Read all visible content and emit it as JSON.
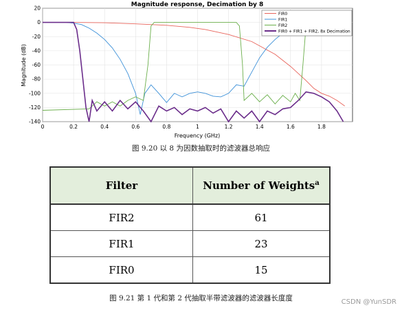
{
  "chart_data": {
    "type": "line",
    "title": "Magnitude response, Decimation by 8",
    "xlabel": "Frequency (GHz)",
    "ylabel": "Magnitude (dB)",
    "xlim": [
      0,
      2
    ],
    "ylim": [
      -140,
      20
    ],
    "xticks": [
      "0",
      "0.2",
      "0.4",
      "0.6",
      "0.8",
      "1",
      "1.2",
      "1.4",
      "1.6",
      "1.8"
    ],
    "yticks": [
      "20",
      "0",
      "-20",
      "-40",
      "-60",
      "-80",
      "-100",
      "-120",
      "-140"
    ],
    "grid": true,
    "legend_position": "top-right",
    "series": [
      {
        "name": "FIR0",
        "color": "#e8635a",
        "x": [
          0,
          0.2,
          0.4,
          0.6,
          0.8,
          0.95,
          1.05,
          1.2,
          1.35,
          1.5,
          1.6,
          1.7,
          1.75,
          1.8,
          1.85,
          1.9,
          1.95
        ],
        "y": [
          0,
          0,
          -0.5,
          -2,
          -4,
          -7,
          -10,
          -17,
          -27,
          -45,
          -62,
          -82,
          -93,
          -100,
          -104,
          -110,
          -118
        ]
      },
      {
        "name": "FIR1",
        "color": "#3c90d8",
        "x": [
          0,
          0.15,
          0.2,
          0.25,
          0.3,
          0.35,
          0.4,
          0.45,
          0.5,
          0.55,
          0.6,
          0.63,
          0.66,
          0.7,
          0.75,
          0.8,
          0.85,
          0.9,
          0.95,
          1.0,
          1.05,
          1.1,
          1.15,
          1.2,
          1.25,
          1.3,
          1.35,
          1.4,
          1.45,
          1.5,
          1.55,
          1.6,
          1.7,
          1.8,
          1.9,
          1.95
        ],
        "y": [
          0,
          0,
          -1,
          -3,
          -8,
          -15,
          -24,
          -36,
          -52,
          -72,
          -100,
          -130,
          -100,
          -88,
          -100,
          -113,
          -100,
          -105,
          -100,
          -98,
          -100,
          -104,
          -105,
          -100,
          -88,
          -90,
          -70,
          -50,
          -35,
          -24,
          -15,
          -8,
          -2,
          0,
          0,
          0
        ]
      },
      {
        "name": "FIR2",
        "color": "#6aae4a",
        "x": [
          0,
          0.3,
          0.35,
          0.4,
          0.45,
          0.5,
          0.55,
          0.6,
          0.65,
          0.68,
          0.7,
          0.72,
          0.75,
          0.8,
          0.9,
          1.0,
          1.1,
          1.2,
          1.25,
          1.27,
          1.29,
          1.3,
          1.35,
          1.4,
          1.45,
          1.5,
          1.55,
          1.6,
          1.63,
          1.66,
          1.68,
          1.7,
          1.75,
          1.8,
          1.95
        ],
        "y": [
          -124,
          -122,
          -112,
          -118,
          -112,
          -118,
          -110,
          -105,
          -110,
          -60,
          -5,
          0,
          0,
          0,
          0,
          0,
          0,
          0,
          0,
          -5,
          -60,
          -110,
          -100,
          -112,
          -102,
          -115,
          -103,
          -112,
          -100,
          -110,
          -60,
          -5,
          0,
          0,
          0
        ]
      },
      {
        "name": "FIR0 + FIR1 + FIR2, 8x Decimation",
        "color": "#6a2c8a",
        "x": [
          0,
          0.2,
          0.22,
          0.24,
          0.26,
          0.28,
          0.3,
          0.32,
          0.35,
          0.4,
          0.45,
          0.5,
          0.55,
          0.6,
          0.65,
          0.7,
          0.75,
          0.8,
          0.85,
          0.9,
          0.95,
          1.0,
          1.05,
          1.1,
          1.15,
          1.2,
          1.25,
          1.3,
          1.35,
          1.4,
          1.45,
          1.5,
          1.55,
          1.6,
          1.65,
          1.7,
          1.75,
          1.8,
          1.85,
          1.9,
          1.94
        ],
        "y": [
          0,
          0,
          -10,
          -40,
          -80,
          -120,
          -140,
          -110,
          -125,
          -112,
          -125,
          -110,
          -122,
          -112,
          -125,
          -140,
          -118,
          -125,
          -120,
          -130,
          -122,
          -125,
          -120,
          -128,
          -122,
          -140,
          -125,
          -135,
          -125,
          -140,
          -125,
          -130,
          -122,
          -120,
          -110,
          -98,
          -100,
          -105,
          -112,
          -125,
          -140
        ]
      }
    ]
  },
  "captions": {
    "figure": "图 9.20 以 8 为因数抽取时的滤波器总响应",
    "table": "图 9.21 第 1 代和第 2 代抽取半带滤波器的滤波器长度度"
  },
  "table": {
    "headers": [
      "Filter",
      "Number of Weights"
    ],
    "header_sup": "a",
    "rows": [
      [
        "FIR2",
        "61"
      ],
      [
        "FIR1",
        "23"
      ],
      [
        "FIR0",
        "15"
      ]
    ]
  },
  "watermark": "CSDN @YunSDR"
}
